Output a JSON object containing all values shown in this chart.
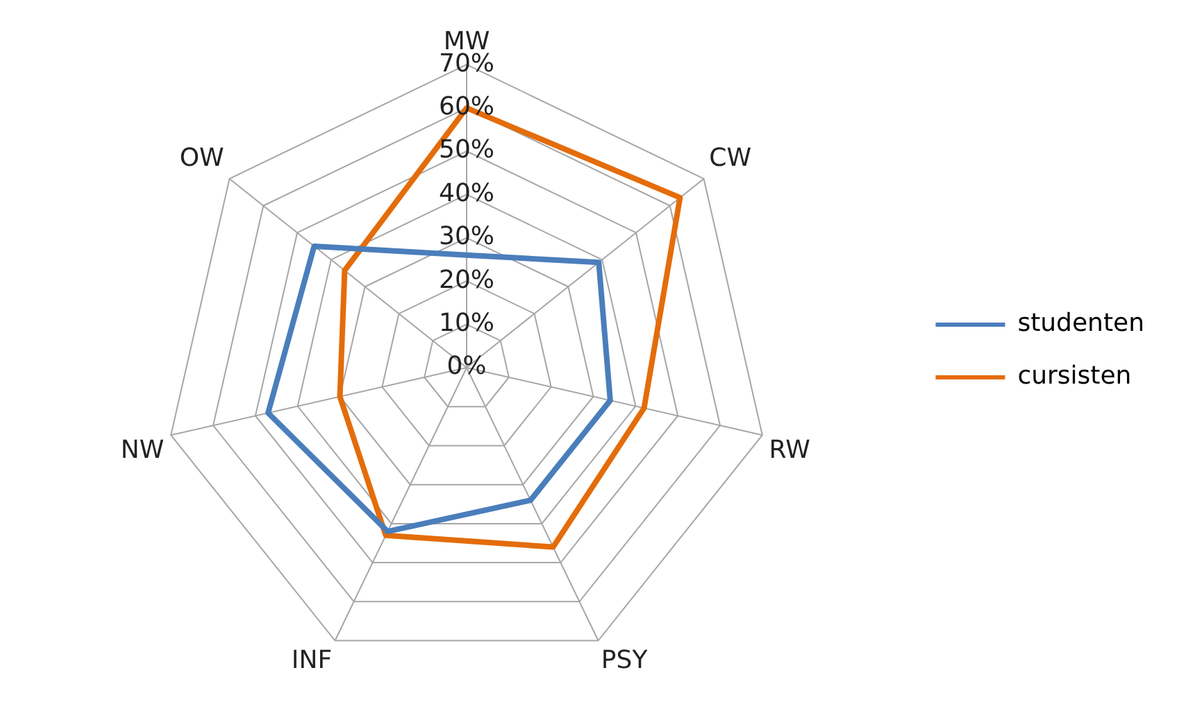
{
  "chart_data": {
    "type": "radar",
    "categories": [
      "MW",
      "CW",
      "RW",
      "PSY",
      "INF",
      "NW",
      "OW"
    ],
    "series": [
      {
        "name": "studenten",
        "color": "#4a7ebb",
        "values": [
          26,
          39,
          34,
          34,
          42,
          47,
          45
        ]
      },
      {
        "name": "cursisten",
        "color": "#e46c0a",
        "values": [
          60,
          63,
          42,
          46,
          43,
          30,
          36
        ]
      }
    ],
    "ylim": [
      0,
      70
    ],
    "yticks": [
      {
        "value": 0,
        "label": "0%"
      },
      {
        "value": 10,
        "label": "10%"
      },
      {
        "value": 20,
        "label": "20%"
      },
      {
        "value": 30,
        "label": "30%"
      },
      {
        "value": 40,
        "label": "40%"
      },
      {
        "value": 50,
        "label": "50%"
      },
      {
        "value": 60,
        "label": "60%"
      },
      {
        "value": 70,
        "label": "70%"
      }
    ],
    "grid": true,
    "legend": "right",
    "marker": "none"
  }
}
